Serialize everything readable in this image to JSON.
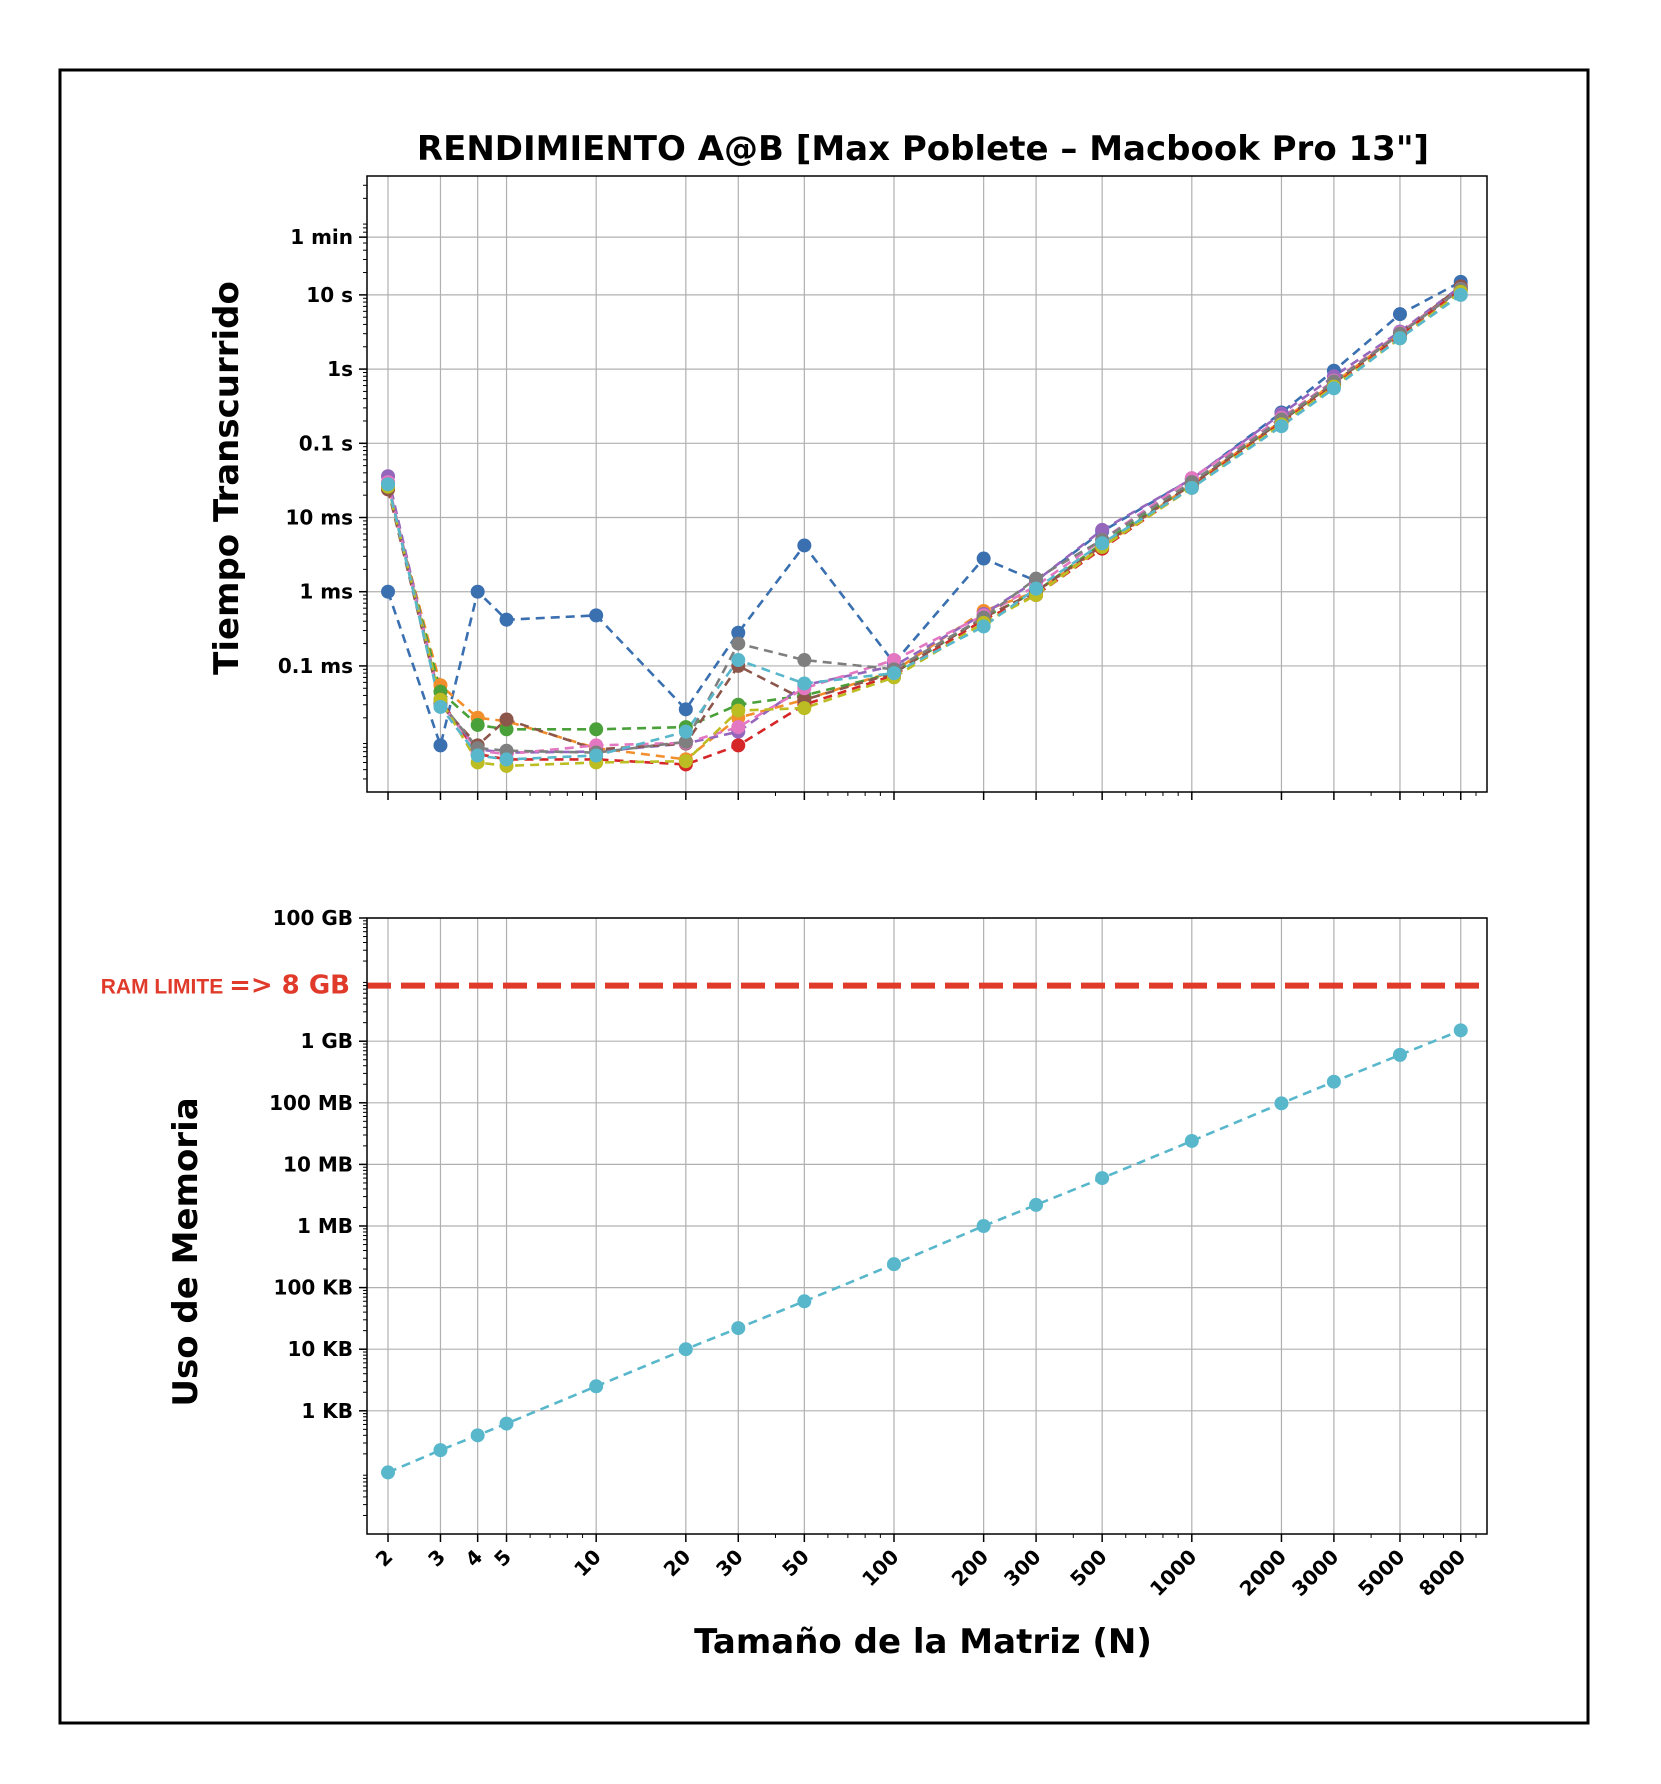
{
  "figure": {
    "title": "RENDIMIENTO A@B [Max Poblete – Macbook Pro 13\"]",
    "xlabel": "Tamaño de la Matriz (N)"
  },
  "chart_data": [
    {
      "type": "line",
      "title": "RENDIMIENTO A@B [Max Poblete – Macbook Pro 13\"]",
      "ylabel": "Tiempo Transcurrido",
      "xlabel": "",
      "x_scale": "log",
      "y_scale": "log",
      "y_unit": "seconds",
      "grid": true,
      "linestyle": "dashed",
      "marker": "circle",
      "x": [
        2,
        3,
        4,
        5,
        10,
        20,
        30,
        50,
        100,
        200,
        300,
        500,
        1000,
        2000,
        3000,
        5000,
        8000
      ],
      "x_tick_labels": [
        "2",
        "3",
        "4",
        "5",
        "10",
        "20",
        "30",
        "50",
        "100",
        "200",
        "300",
        "500",
        "1000",
        "2000",
        "3000",
        "5000",
        "8000"
      ],
      "ylim": [
        2e-06,
        400
      ],
      "y_ticks": [
        {
          "value": 60,
          "label": "1 min"
        },
        {
          "value": 10,
          "label": "10 s"
        },
        {
          "value": 1,
          "label": "1s"
        },
        {
          "value": 0.1,
          "label": "0.1 s"
        },
        {
          "value": 0.01,
          "label": "10 ms"
        },
        {
          "value": 0.001,
          "label": "1 ms"
        },
        {
          "value": 0.0001,
          "label": "0.1 ms"
        }
      ],
      "series": [
        {
          "color": "#3a6fb0",
          "values": [
            0.001,
            8.5e-06,
            0.001,
            0.00042,
            0.00048,
            2.6e-05,
            0.00028,
            0.0042,
            0.00011,
            0.0028,
            0.0014,
            0.0065,
            0.033,
            0.26,
            0.95,
            5.5,
            15
          ]
        },
        {
          "color": "#f28e2b",
          "values": [
            0.024,
            5.5e-05,
            2e-05,
            1.8e-05,
            7.8e-06,
            5.5e-06,
            2e-05,
            3.5e-05,
            8.5e-05,
            0.00055,
            0.001,
            0.004,
            0.028,
            0.2,
            0.65,
            3,
            12
          ]
        },
        {
          "color": "#4aa13a",
          "values": [
            0.025,
            4.5e-05,
            1.6e-05,
            1.4e-05,
            1.4e-05,
            1.5e-05,
            3e-05,
            4e-05,
            8e-05,
            0.00045,
            0.001,
            0.0045,
            0.028,
            0.2,
            0.65,
            3,
            12
          ]
        },
        {
          "color": "#d62728",
          "values": [
            0.024,
            3.5e-05,
            6.5e-06,
            5.5e-06,
            5.5e-06,
            4.7e-06,
            8.5e-06,
            3e-05,
            7.5e-05,
            0.00042,
            0.0009,
            0.0038,
            0.026,
            0.19,
            0.6,
            2.8,
            12
          ]
        },
        {
          "color": "#9467bd",
          "values": [
            0.036,
            3.2e-05,
            7.5e-06,
            6.8e-06,
            7e-06,
            9e-06,
            1.3e-05,
            5.5e-05,
            0.0001,
            0.0005,
            0.0014,
            0.0068,
            0.033,
            0.25,
            0.8,
            3.2,
            13
          ]
        },
        {
          "color": "#8c564b",
          "values": [
            0.024,
            3e-05,
            8.5e-06,
            1.9e-05,
            7.5e-06,
            9e-06,
            0.0001,
            3.5e-05,
            8e-05,
            0.00045,
            0.001,
            0.0042,
            0.028,
            0.2,
            0.65,
            3,
            13
          ]
        },
        {
          "color": "#e377c2",
          "values": [
            0.03,
            3.2e-05,
            7.2e-06,
            6.5e-06,
            8.5e-06,
            9.2e-06,
            1.5e-05,
            5e-05,
            0.00012,
            0.00048,
            0.0012,
            0.005,
            0.034,
            0.22,
            0.7,
            3.1,
            12
          ]
        },
        {
          "color": "#7f7f7f",
          "values": [
            0.028,
            3.2e-05,
            7.8e-06,
            7.2e-06,
            6.8e-06,
            9.5e-06,
            0.0002,
            0.00012,
            9e-05,
            0.00045,
            0.0015,
            0.005,
            0.03,
            0.21,
            0.68,
            3,
            12
          ]
        },
        {
          "color": "#bcbd22",
          "values": [
            0.026,
            3.5e-05,
            5e-06,
            4.5e-06,
            5e-06,
            5.2e-06,
            2.5e-05,
            2.7e-05,
            7e-05,
            0.00038,
            0.0009,
            0.004,
            0.025,
            0.18,
            0.58,
            2.6,
            11
          ]
        },
        {
          "color": "#58b7cb",
          "values": [
            0.028,
            2.8e-05,
            6.2e-06,
            5.5e-06,
            6.2e-06,
            1.3e-05,
            0.00012,
            5.8e-05,
            8e-05,
            0.00034,
            0.0011,
            0.0045,
            0.025,
            0.17,
            0.55,
            2.6,
            10
          ]
        }
      ]
    },
    {
      "type": "line",
      "title": "",
      "ylabel": "Uso de Memoria",
      "xlabel": "Tamaño de la Matriz (N)",
      "x_scale": "log",
      "y_scale": "log",
      "y_unit": "bytes",
      "grid": true,
      "linestyle": "dashed",
      "marker": "circle",
      "x": [
        2,
        3,
        4,
        5,
        10,
        20,
        30,
        50,
        100,
        200,
        300,
        500,
        1000,
        2000,
        3000,
        5000,
        8000
      ],
      "x_tick_labels": [
        "2",
        "3",
        "4",
        "5",
        "10",
        "20",
        "30",
        "50",
        "100",
        "200",
        "300",
        "500",
        "1000",
        "2000",
        "3000",
        "5000",
        "8000"
      ],
      "ylim": [
        10,
        100000000000
      ],
      "y_ticks": [
        {
          "value": 100000000000,
          "label": "100 GB"
        },
        {
          "value": 1000000000,
          "label": "1 GB"
        },
        {
          "value": 100000000,
          "label": "100 MB"
        },
        {
          "value": 10000000,
          "label": "10 MB"
        },
        {
          "value": 1000000,
          "label": "1 MB"
        },
        {
          "value": 100000,
          "label": "100 KB"
        },
        {
          "value": 10000,
          "label": "10 KB"
        },
        {
          "value": 1000,
          "label": "1 KB"
        }
      ],
      "reference_line": {
        "label": "RAM LIMITE => 8 GB",
        "label_main": "RAM LIMITE",
        "label_value": "=> 8 GB",
        "value": 8000000000,
        "color": "#e03a2a",
        "linestyle": "dashed"
      },
      "series": [
        {
          "color": "#58b7cb",
          "values": [
            100,
            230,
            400,
            620,
            2500,
            10000,
            22000,
            60000,
            240000,
            1000000,
            2200000,
            6000000,
            24000000,
            98000000,
            220000000,
            600000000,
            1500000000
          ]
        }
      ]
    }
  ]
}
